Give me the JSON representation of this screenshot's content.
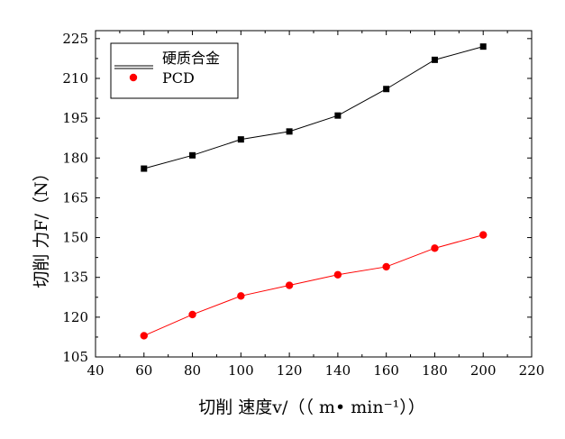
{
  "chart_data": {
    "type": "line",
    "xlabel": "切削  速度v/（（ m• min⁻¹））",
    "ylabel": "切削  力F/（N）",
    "xlim": [
      40,
      220
    ],
    "ylim": [
      105,
      228
    ],
    "xticks": [
      40,
      60,
      80,
      100,
      120,
      140,
      160,
      180,
      200,
      220
    ],
    "yticks": [
      105,
      120,
      135,
      150,
      165,
      180,
      195,
      210,
      225
    ],
    "x": [
      60,
      80,
      100,
      120,
      140,
      160,
      180,
      200
    ],
    "series": [
      {
        "name": "硬质合金",
        "marker": "square",
        "color": "#000000",
        "values": [
          176,
          181,
          187,
          190,
          196,
          206,
          217,
          222
        ]
      },
      {
        "name": "PCD",
        "marker": "circle",
        "color": "#ff0000",
        "values": [
          113,
          121,
          128,
          132,
          136,
          139,
          146,
          151
        ]
      }
    ],
    "legend_position": "top-left",
    "grid": false
  }
}
